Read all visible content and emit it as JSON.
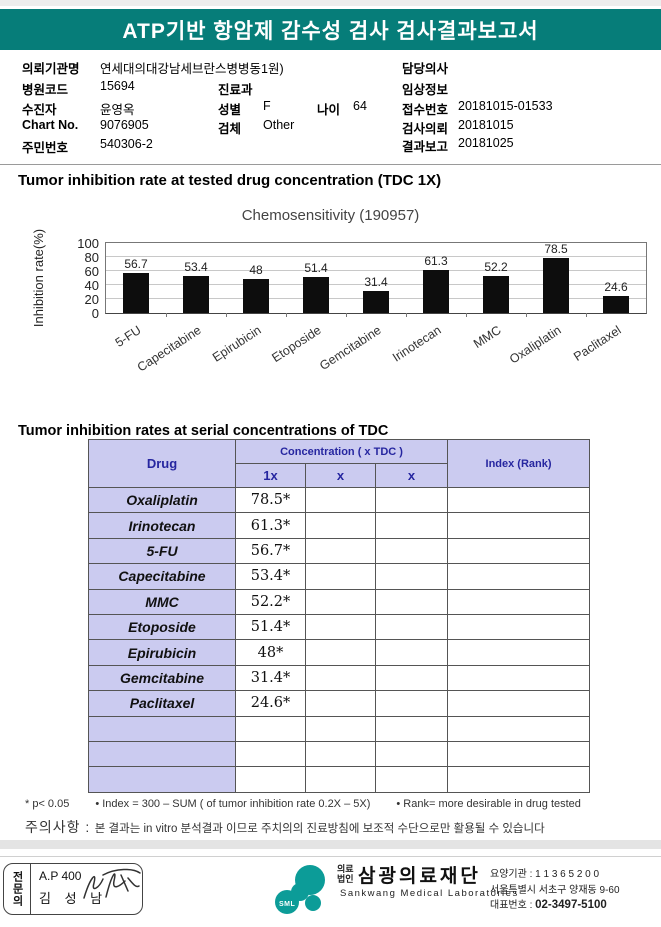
{
  "header": {
    "title": "ATP기반 항암제 감수성 검사 검사결과보고서"
  },
  "info": {
    "left": [
      {
        "label": "의뢰기관명",
        "value": "연세대의대강남세브란스병병동1원)"
      },
      {
        "label": "병원코드",
        "value": "15694"
      },
      {
        "label": "수진자",
        "value": "윤영옥"
      },
      {
        "label": "Chart No.",
        "value": "9076905"
      },
      {
        "label": "주민번호",
        "value": "540306-2"
      }
    ],
    "middle": {
      "dept_label": "진료과",
      "dept_value": "",
      "sex_label": "성별",
      "sex_value": "F",
      "age_label": "나이",
      "age_value": "64",
      "specimen_label": "검체",
      "specimen_value": "Other"
    },
    "right": [
      {
        "label": "담당의사",
        "value": ""
      },
      {
        "label": "임상정보",
        "value": ""
      },
      {
        "label": "접수번호",
        "value": "20181015-01533"
      },
      {
        "label": "검사의뢰",
        "value": "20181015"
      },
      {
        "label": "결과보고",
        "value": "20181025"
      }
    ]
  },
  "section1": {
    "title": "Tumor inhibition rate at tested drug concentration (TDC 1X)"
  },
  "chart_data": {
    "type": "bar",
    "title": "Chemosensitivity (190957)",
    "categories": [
      "5-FU",
      "Capecitabine",
      "Epirubicin",
      "Etoposide",
      "Gemcitabine",
      "Irinotecan",
      "MMC",
      "Oxaliplatin",
      "Paclitaxel"
    ],
    "values": [
      56.7,
      53.4,
      48,
      51.4,
      31.4,
      61.3,
      52.2,
      78.5,
      24.6
    ],
    "ylabel": "Inhibition rate(%)",
    "yticks": [
      0,
      20,
      40,
      60,
      80,
      100
    ],
    "ylim": [
      0,
      100
    ],
    "grid": true,
    "legend": "none",
    "bar_color": "#0d0d0d"
  },
  "section2": {
    "title": "Tumor inhibition rates at serial concentrations of TDC"
  },
  "table": {
    "col_drug": "Drug",
    "col_conc": "Concentration ( x TDC )",
    "col_1x": "1x",
    "col_x2": "x",
    "col_x3": "x",
    "col_index": "Index (Rank)",
    "rows": [
      {
        "drug": "Oxaliplatin",
        "c1": "78.5*",
        "c2": "",
        "c3": "",
        "index": ""
      },
      {
        "drug": "Irinotecan",
        "c1": "61.3*",
        "c2": "",
        "c3": "",
        "index": ""
      },
      {
        "drug": "5-FU",
        "c1": "56.7*",
        "c2": "",
        "c3": "",
        "index": ""
      },
      {
        "drug": "Capecitabine",
        "c1": "53.4*",
        "c2": "",
        "c3": "",
        "index": ""
      },
      {
        "drug": "MMC",
        "c1": "52.2*",
        "c2": "",
        "c3": "",
        "index": ""
      },
      {
        "drug": "Etoposide",
        "c1": "51.4*",
        "c2": "",
        "c3": "",
        "index": ""
      },
      {
        "drug": "Epirubicin",
        "c1": "48*",
        "c2": "",
        "c3": "",
        "index": ""
      },
      {
        "drug": "Gemcitabine",
        "c1": "31.4*",
        "c2": "",
        "c3": "",
        "index": ""
      },
      {
        "drug": "Paclitaxel",
        "c1": "24.6*",
        "c2": "",
        "c3": "",
        "index": ""
      },
      {
        "drug": "",
        "c1": "",
        "c2": "",
        "c3": "",
        "index": ""
      },
      {
        "drug": "",
        "c1": "",
        "c2": "",
        "c3": "",
        "index": ""
      },
      {
        "drug": "",
        "c1": "",
        "c2": "",
        "c3": "",
        "index": ""
      }
    ]
  },
  "footnotes": {
    "p_value": "* p< 0.05",
    "index_def": "• Index = 300 – SUM ( of tumor inhibition rate 0.2X  –  5X)",
    "rank_def": "• Rank= more desirable in drug tested",
    "caution_label": "주의사항 :",
    "caution_text": "본 결과는 in vitro 분석결과 이므로 주치의의 진료방침에 보조적 수단으로만 활용될 수 있습니다"
  },
  "footer": {
    "specialist_label": "전문의",
    "credential": "A.P 400",
    "doctor_name": "김 성 남",
    "logo_text": "SML",
    "org_prefix_line1": "의료",
    "org_prefix_line2": "법인",
    "org_name": "삼광의료재단",
    "org_en": "Sankwang Medical Laboratories",
    "license": "요양기관 : 1 1 3 6 5 2 0 0",
    "address": "서울특별시 서초구 양재동 9-60",
    "phone_label": "대표번호 : ",
    "phone": "02-3497-5100",
    "brand_color": "#0c9c98"
  }
}
